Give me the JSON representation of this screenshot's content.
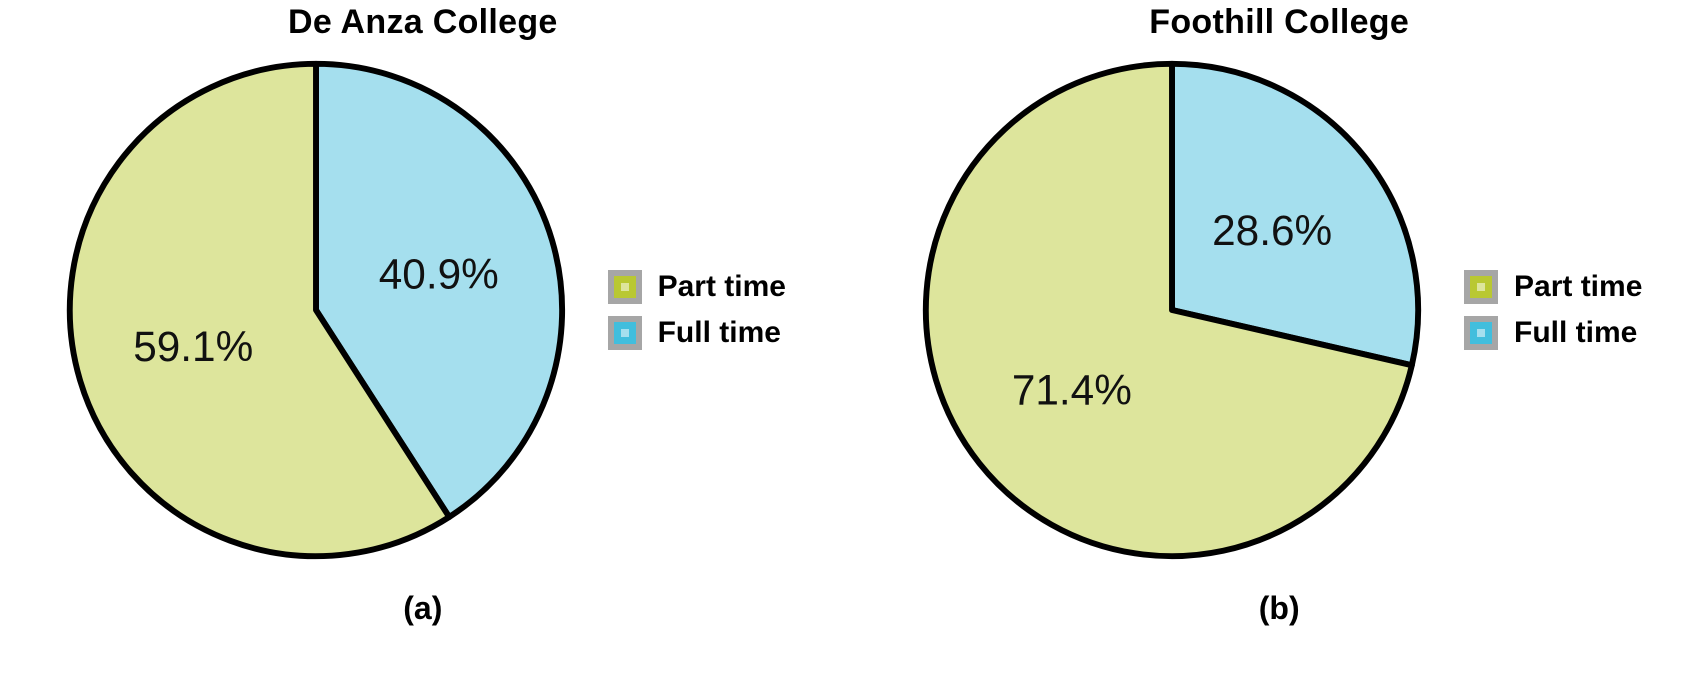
{
  "colors": {
    "part_time_fill": "#dde59c",
    "part_time_border": "#b9c832",
    "full_time_fill": "#a5dfee",
    "full_time_border": "#41bedd",
    "swatch_outline": "#a6a6a6",
    "outline": "#000000",
    "text": "#000000"
  },
  "chart_data": [
    {
      "type": "pie",
      "title": "De Anza College",
      "caption": "(a)",
      "start_angle_deg": 0,
      "direction": "clockwise",
      "legend_position": "right",
      "slices": [
        {
          "name": "Full time",
          "value": 40.9,
          "label": "40.9%",
          "color": "#a5dfee"
        },
        {
          "name": "Part time",
          "value": 59.1,
          "label": "59.1%",
          "color": "#dde59c"
        }
      ],
      "legend": [
        "Part time",
        "Full time"
      ]
    },
    {
      "type": "pie",
      "title": "Foothill College",
      "caption": "(b)",
      "start_angle_deg": 0,
      "direction": "clockwise",
      "legend_position": "right",
      "slices": [
        {
          "name": "Full time",
          "value": 28.6,
          "label": "28.6%",
          "color": "#a5dfee"
        },
        {
          "name": "Part time",
          "value": 71.4,
          "label": "71.4%",
          "color": "#dde59c"
        }
      ],
      "legend": [
        "Part time",
        "Full time"
      ]
    }
  ]
}
